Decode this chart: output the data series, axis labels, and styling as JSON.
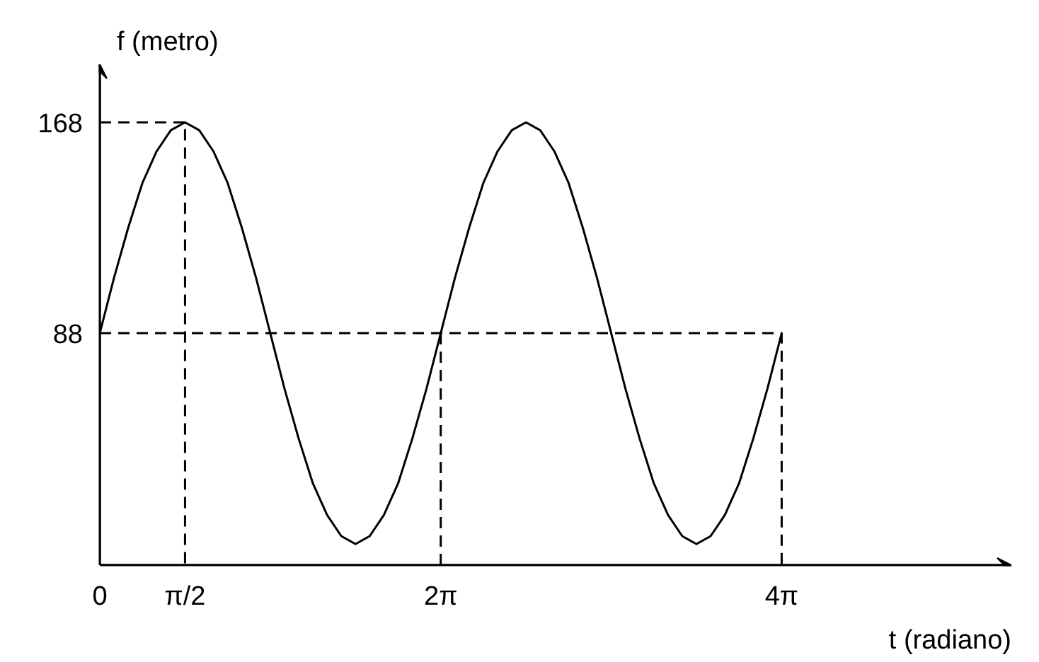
{
  "chart_data": {
    "type": "line",
    "xlabel": "t (radiano)",
    "ylabel": "f (metro)",
    "xlim": [
      0,
      16.8
    ],
    "ylim": [
      0,
      190
    ],
    "xticks": [
      {
        "value": 0,
        "label": "0"
      },
      {
        "value": 1.5708,
        "label": "π/2"
      },
      {
        "value": 6.2832,
        "label": "2π"
      },
      {
        "value": 12.5664,
        "label": "4π"
      }
    ],
    "yticks": [
      88,
      168
    ],
    "grid": false,
    "marker": "none",
    "series": [
      {
        "color": "#000000",
        "line_style": "solid",
        "x": [
          0,
          0.2618,
          0.5236,
          0.7854,
          1.0472,
          1.309,
          1.5708,
          1.8326,
          2.0944,
          2.3562,
          2.618,
          2.8798,
          3.1416,
          3.4034,
          3.6652,
          3.927,
          4.1888,
          4.4506,
          4.7124,
          4.9742,
          5.236,
          5.4978,
          5.7596,
          6.0214,
          6.2832,
          6.545,
          6.8068,
          7.0686,
          7.3304,
          7.5922,
          7.854,
          8.1158,
          8.3776,
          8.6394,
          8.9012,
          9.163,
          9.4248,
          9.6866,
          9.9484,
          10.2102,
          10.472,
          10.7338,
          10.9956,
          11.2574,
          11.5192,
          11.781,
          12.0428,
          12.3046,
          12.5664
        ],
        "values": [
          88,
          109,
          128,
          145,
          157,
          165,
          168,
          165,
          157,
          145,
          128,
          109,
          88,
          67,
          48,
          31,
          19,
          11,
          8,
          11,
          19,
          31,
          48,
          67,
          88,
          109,
          128,
          145,
          157,
          165,
          168,
          165,
          157,
          145,
          128,
          109,
          88,
          67,
          48,
          31,
          19,
          11,
          8,
          11,
          19,
          31,
          48,
          67,
          88
        ]
      },
      {
        "type": "line",
        "color": "#000000",
        "line_style": "dashed",
        "x": [
          0,
          1.5708,
          1.5708
        ],
        "values": [
          168,
          168,
          0
        ]
      },
      {
        "type": "line",
        "color": "#000000",
        "line_style": "dashed",
        "x": [
          0,
          12.5664,
          12.5664
        ],
        "values": [
          88,
          88,
          0
        ]
      },
      {
        "type": "line",
        "color": "#000000",
        "line_style": "dashed",
        "x": [
          6.2832,
          6.2832
        ],
        "values": [
          88,
          0
        ]
      }
    ]
  }
}
